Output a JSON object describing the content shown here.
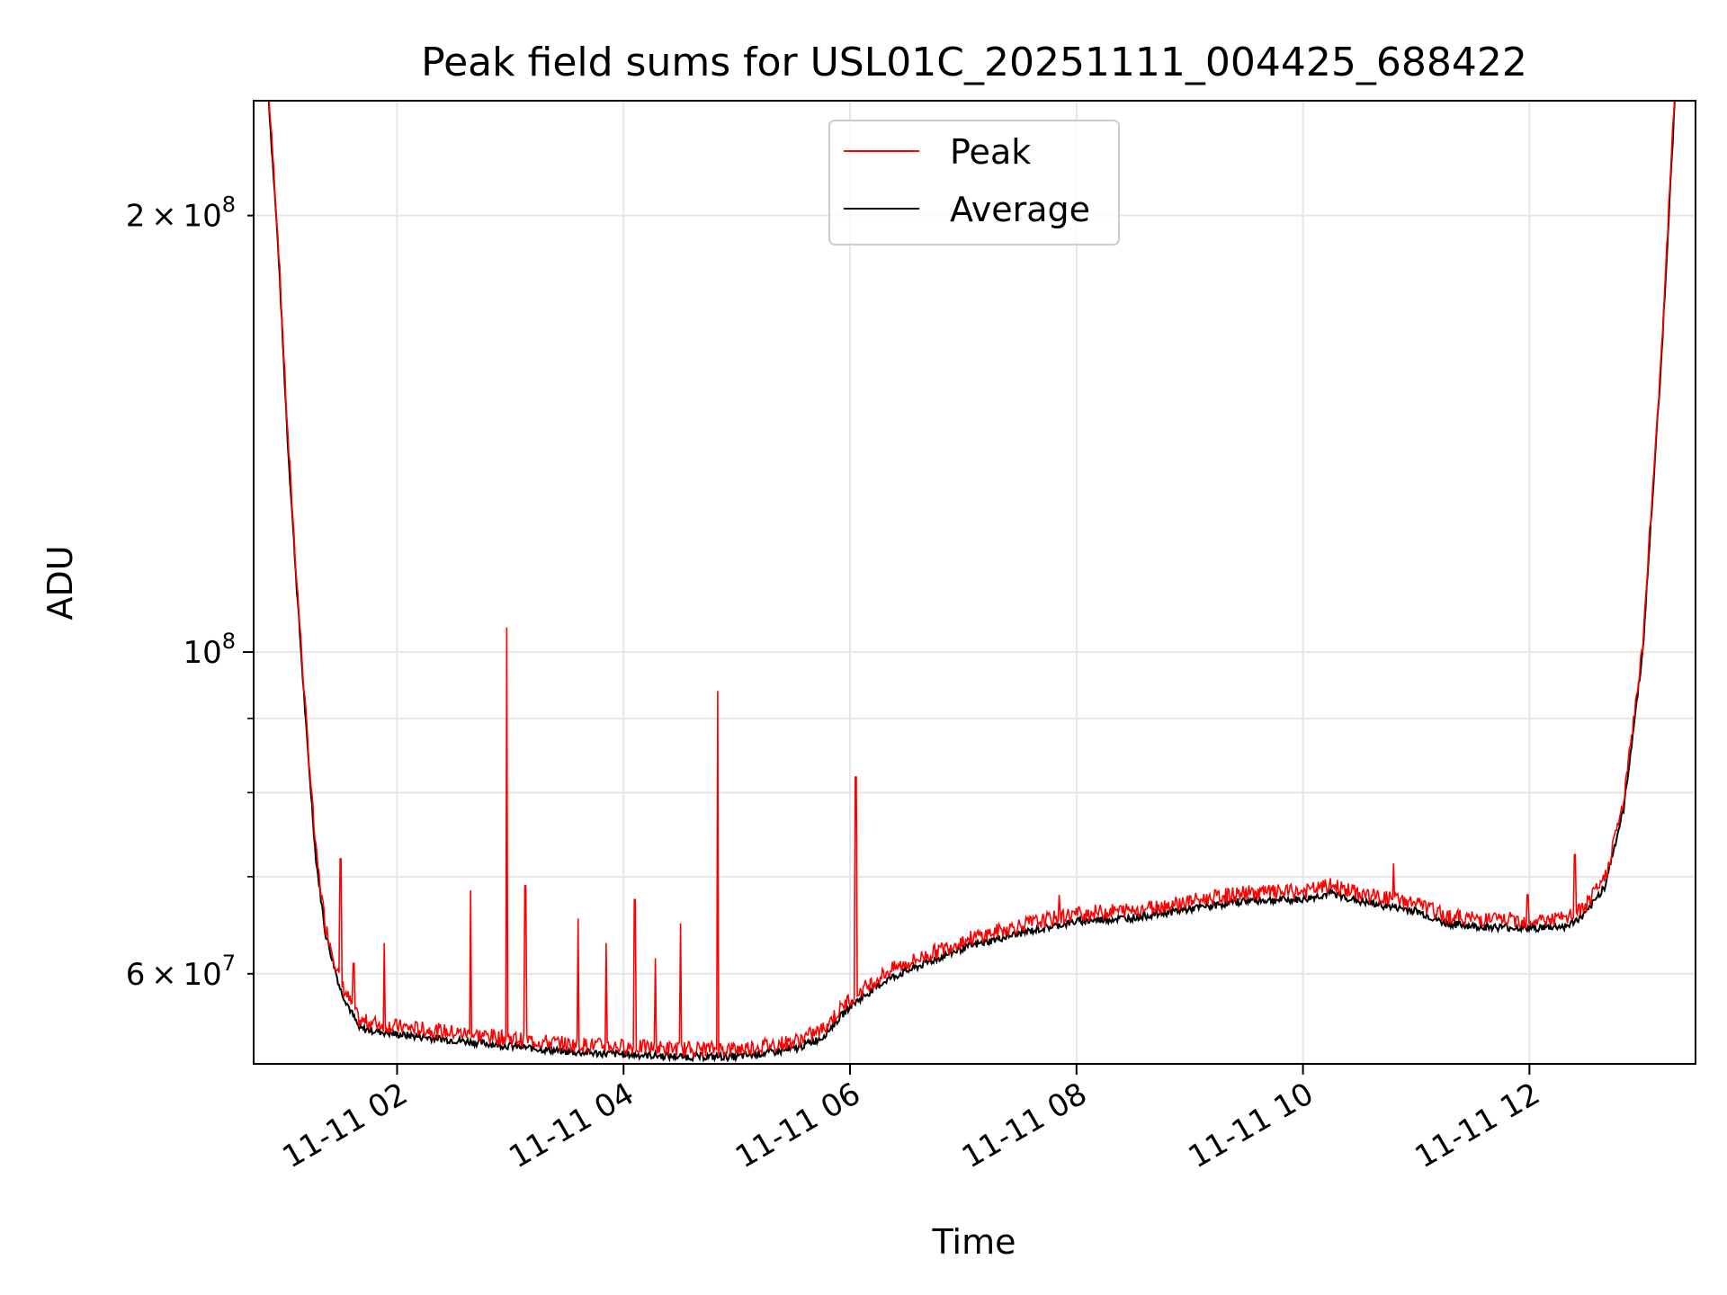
{
  "chart_data": {
    "type": "line",
    "title": "Peak field sums for USL01C_20251111_004425_688422",
    "xlabel": "Time",
    "ylabel": "ADU",
    "x_axis": {
      "type": "time",
      "range": [
        "2025-11-11 00:44",
        "2025-11-11 13:28"
      ],
      "ticks": [
        {
          "value": "2025-11-11 02:00",
          "label": "11-11 02"
        },
        {
          "value": "2025-11-11 04:00",
          "label": "11-11 04"
        },
        {
          "value": "2025-11-11 06:00",
          "label": "11-11 06"
        },
        {
          "value": "2025-11-11 08:00",
          "label": "11-11 08"
        },
        {
          "value": "2025-11-11 10:00",
          "label": "11-11 10"
        },
        {
          "value": "2025-11-11 12:00",
          "label": "11-11 12"
        }
      ]
    },
    "y_axis": {
      "scale": "log",
      "range": [
        52000000,
        240000000
      ],
      "ticks": [
        {
          "value": 60000000,
          "mantissa": "6",
          "exp": "7",
          "major": false
        },
        {
          "value": 100000000,
          "mantissa": "",
          "exp": "8",
          "major": true
        },
        {
          "value": 200000000,
          "mantissa": "2",
          "exp": "8",
          "major": false
        }
      ],
      "minor_ticks": [
        70000000,
        80000000,
        90000000
      ]
    },
    "grid": true,
    "legend": {
      "position": "top-center",
      "entries": [
        "Peak",
        "Average"
      ]
    },
    "series": [
      {
        "name": "Average",
        "color": "#000000",
        "x": [
          "2025-11-11 00:52",
          "2025-11-11 00:57",
          "2025-11-11 01:02",
          "2025-11-11 01:07",
          "2025-11-11 01:12",
          "2025-11-11 01:17",
          "2025-11-11 01:22",
          "2025-11-11 01:30",
          "2025-11-11 01:40",
          "2025-11-11 02:00",
          "2025-11-11 02:30",
          "2025-11-11 03:00",
          "2025-11-11 03:30",
          "2025-11-11 04:00",
          "2025-11-11 04:30",
          "2025-11-11 05:00",
          "2025-11-11 05:30",
          "2025-11-11 05:45",
          "2025-11-11 06:00",
          "2025-11-11 06:20",
          "2025-11-11 06:40",
          "2025-11-11 07:00",
          "2025-11-11 07:30",
          "2025-11-11 08:00",
          "2025-11-11 08:30",
          "2025-11-11 09:00",
          "2025-11-11 09:30",
          "2025-11-11 10:00",
          "2025-11-11 10:15",
          "2025-11-11 10:30",
          "2025-11-11 11:00",
          "2025-11-11 11:15",
          "2025-11-11 11:30",
          "2025-11-11 12:00",
          "2025-11-11 12:20",
          "2025-11-11 12:30",
          "2025-11-11 12:40",
          "2025-11-11 12:50",
          "2025-11-11 13:00",
          "2025-11-11 13:10",
          "2025-11-11 13:17"
        ],
        "values": [
          240000000,
          190000000,
          140000000,
          110000000,
          88000000,
          72000000,
          64000000,
          58500000,
          55000000,
          54500000,
          54000000,
          53500000,
          53000000,
          52800000,
          52600000,
          52600000,
          53200000,
          54200000,
          57000000,
          59500000,
          61000000,
          62500000,
          64000000,
          65200000,
          65600000,
          66500000,
          67400000,
          67500000,
          68200000,
          67300000,
          66300000,
          65000000,
          64700000,
          64500000,
          64700000,
          66000000,
          69000000,
          78000000,
          100000000,
          160000000,
          240000000
        ]
      },
      {
        "name": "Peak",
        "color": "#ff0000",
        "spikes": [
          {
            "x": "2025-11-11 00:58",
            "value": 165000000
          },
          {
            "x": "2025-11-11 01:08",
            "value": 92000000
          },
          {
            "x": "2025-11-11 01:30",
            "value": 72000000
          },
          {
            "x": "2025-11-11 01:37",
            "value": 61000000
          },
          {
            "x": "2025-11-11 01:53",
            "value": 63000000
          },
          {
            "x": "2025-11-11 02:39",
            "value": 68500000
          },
          {
            "x": "2025-11-11 02:58",
            "value": 104000000
          },
          {
            "x": "2025-11-11 03:08",
            "value": 69000000
          },
          {
            "x": "2025-11-11 03:36",
            "value": 65500000
          },
          {
            "x": "2025-11-11 03:51",
            "value": 63000000
          },
          {
            "x": "2025-11-11 04:06",
            "value": 67500000
          },
          {
            "x": "2025-11-11 04:17",
            "value": 61500000
          },
          {
            "x": "2025-11-11 04:30",
            "value": 65000000
          },
          {
            "x": "2025-11-11 04:50",
            "value": 94000000
          },
          {
            "x": "2025-11-11 06:03",
            "value": 82000000
          },
          {
            "x": "2025-11-11 07:51",
            "value": 68000000
          },
          {
            "x": "2025-11-11 10:48",
            "value": 71500000
          },
          {
            "x": "2025-11-11 11:59",
            "value": 68000000
          },
          {
            "x": "2025-11-11 12:24",
            "value": 72500000
          }
        ]
      }
    ]
  }
}
